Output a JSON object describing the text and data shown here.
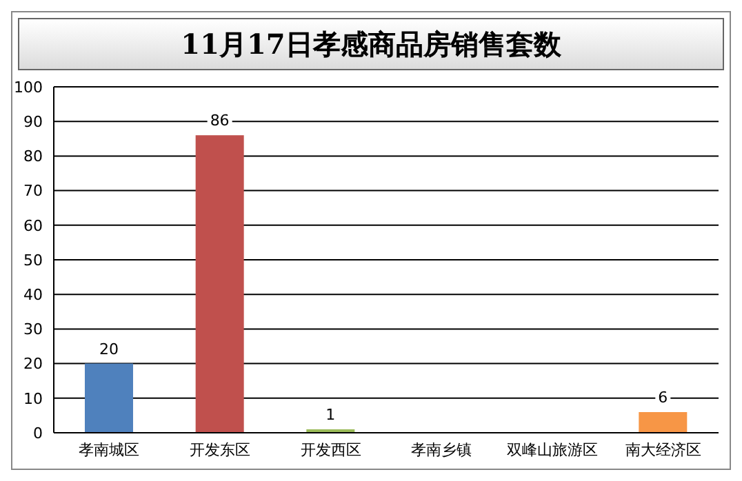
{
  "chart_data": {
    "type": "bar",
    "title": "11月17日孝感商品房销售套数",
    "categories": [
      "孝南城区",
      "开发东区",
      "开发西区",
      "孝南乡镇",
      "双峰山旅游区",
      "南大经济区"
    ],
    "values": [
      20,
      86,
      1,
      0,
      0,
      6
    ],
    "colors": [
      "#4f81bd",
      "#c0504d",
      "#9bbb59",
      "#8064a2",
      "#4bacc6",
      "#f79646"
    ],
    "value_labels": [
      "20",
      "86",
      "1",
      null,
      null,
      "6"
    ],
    "ylim": [
      0,
      100
    ],
    "yticks": [
      0,
      10,
      20,
      30,
      40,
      50,
      60,
      70,
      80,
      90,
      100
    ],
    "grid": "y"
  }
}
